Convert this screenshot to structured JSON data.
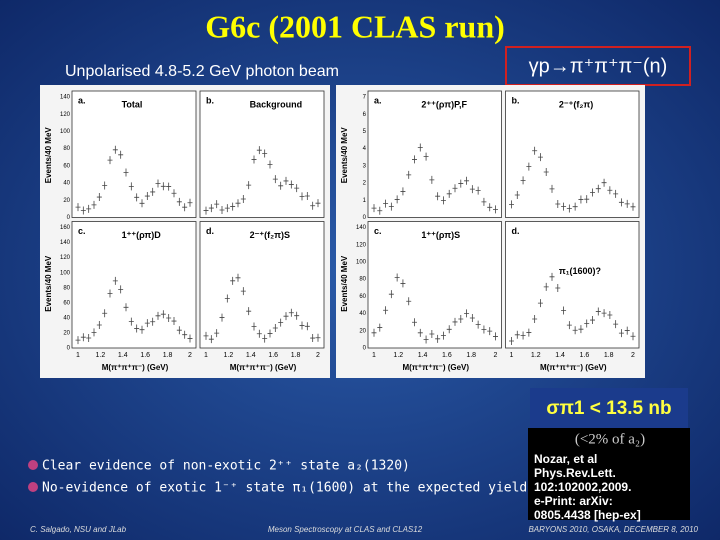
{
  "header": {
    "title": "G6c (2001 CLAS run)",
    "subtitle": "Unpolarised 4.8-5.2 GeV photon beam",
    "reaction": "γp→π⁺π⁺π⁻(n)"
  },
  "figures": [
    {
      "y_axis_title": "Events/40 MeV",
      "x_axis_title": "M(π⁺π⁺π⁻) (GeV)",
      "y_ticks_top": [
        "0",
        "20",
        "40",
        "60",
        "80",
        "100",
        "120",
        "140"
      ],
      "y_ticks_bottom": [
        "0",
        "20",
        "40",
        "60",
        "80",
        "100",
        "120",
        "140",
        "160"
      ],
      "x_ticks": [
        "1",
        "1.2",
        "1.4",
        "1.6",
        "1.8",
        "2"
      ],
      "panels": [
        {
          "label": "a.",
          "title": "Total"
        },
        {
          "label": "b.",
          "title": "Background"
        },
        {
          "label": "c.",
          "title": "1⁺⁺(ρπ)D"
        },
        {
          "label": "d.",
          "title": "2⁻⁺(f₂π)S"
        }
      ]
    },
    {
      "y_axis_title": "Events/40 MeV",
      "x_axis_title": "M(π⁺π⁺π⁻) (GeV)",
      "y_ticks_top": [
        "0",
        "1",
        "2",
        "3",
        "4",
        "5",
        "6",
        "7"
      ],
      "y_ticks_bottom": [
        "0",
        "20",
        "40",
        "60",
        "80",
        "100",
        "120",
        "140"
      ],
      "x_ticks": [
        "1",
        "1.2",
        "1.4",
        "1.6",
        "1.8",
        "2"
      ],
      "panels": [
        {
          "label": "a.",
          "title": "2⁺⁺(ρπ)P,F"
        },
        {
          "label": "b.",
          "title": "2⁻⁺(f₂π)"
        },
        {
          "label": "c.",
          "title": "1⁺⁺(ρπ)S"
        },
        {
          "label": "d.",
          "title": "π₁(1600)?"
        }
      ]
    }
  ],
  "result": {
    "limit": "σπ1 < 13.5 nb",
    "fraction": "(<2% of a₂)",
    "citation": [
      "Nozar, et al",
      "Phys.Rev.Lett.",
      "102:102002,2009.",
      "e-Print: arXiv:",
      "0805.4438 [hep-ex]"
    ]
  },
  "bullets": [
    "Clear evidence of non-exotic 2⁺⁺ state a₂(1320)",
    "No-evidence of exotic 1⁻⁺ state π₁(1600) at the expected yield"
  ],
  "footer": {
    "left": "C. Salgado, NSU and JLab",
    "center": "Meson Spectroscopy at CLAS and CLAS12",
    "right": "BARYONS 2010, OSAKA, DECEMBER 8, 2010"
  }
}
